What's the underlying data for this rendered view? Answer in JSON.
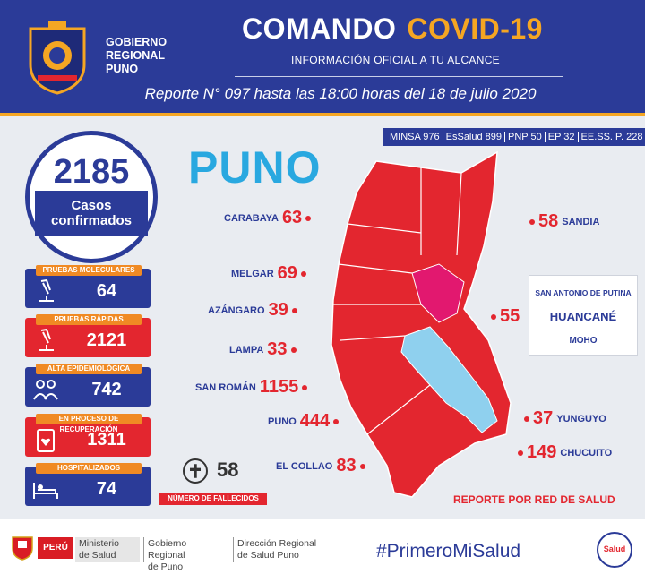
{
  "header": {
    "gov_line1": "GOBIERNO",
    "gov_line2": "REGIONAL",
    "gov_line3": "PUNO",
    "title_main": "COMANDO",
    "title_accent": "COVID-19",
    "subtitle": "INFORMACIÓN OFICIAL A TU ALCANCE",
    "report": "Reporte N° 097 hasta las 18:00 horas del 18 de julio 2020"
  },
  "sources": [
    "MINSA 976",
    "EsSalud 899",
    "PNP 50",
    "EP 32",
    "EE.SS. P. 228"
  ],
  "confirmed": {
    "value": "2185",
    "label_line1": "Casos",
    "label_line2": "confirmados"
  },
  "stats": [
    {
      "tag": "PRUEBAS MOLECULARES",
      "value": "64",
      "icon": "microscope-icon"
    },
    {
      "tag": "PRUEBAS RÁPIDAS",
      "value": "2121",
      "icon": "microscope-icon"
    },
    {
      "tag": "ALTA EPIDEMIOLÓGICA",
      "value": "742",
      "icon": "people-icon"
    },
    {
      "tag": "EN PROCESO DE RECUPERACIÓN",
      "value": "1311",
      "icon": "clipboard-heart-icon"
    },
    {
      "tag": "HOSPITALIZADOS",
      "value": "74",
      "icon": "hospital-bed-icon"
    }
  ],
  "deaths": {
    "value": "58",
    "label": "NÚMERO DE FALLECIDOS"
  },
  "region_title": "PUNO",
  "provinces_left": [
    {
      "name": "CARABAYA",
      "value": "63"
    },
    {
      "name": "MELGAR",
      "value": "69"
    },
    {
      "name": "AZÁNGARO",
      "value": "39"
    },
    {
      "name": "LAMPA",
      "value": "33"
    },
    {
      "name": "SAN ROMÁN",
      "value": "1155"
    },
    {
      "name": "PUNO",
      "value": "444"
    },
    {
      "name": "EL COLLAO",
      "value": "83"
    }
  ],
  "provinces_right": [
    {
      "name": "SANDIA",
      "value": "58"
    },
    {
      "name": "YUNGUYO",
      "value": "37"
    },
    {
      "name": "CHUCUITO",
      "value": "149"
    }
  ],
  "san_antonio": {
    "value": "55",
    "line1": "SAN ANTONIO DE PUTINA",
    "line2": "HUANCANÉ",
    "line3": "MOHO"
  },
  "report_note": "REPORTE POR RED DE SALUD",
  "footer": {
    "peru": "PERÚ",
    "minsa_1": "Ministerio",
    "minsa_2": "de Salud",
    "gob_1": "Gobierno Regional",
    "gob_2": "de Puno",
    "dir_1": "Dirección Regional",
    "dir_2": "de Salud Puno",
    "hashtag": "#PrimeroMiSalud",
    "seal": "Salud"
  },
  "colors": {
    "navy": "#2b3b98",
    "red": "#e3262f",
    "orange": "#f08a24",
    "cyan": "#29a8e0",
    "lake": "#8fd0ee",
    "magenta": "#e2186f"
  }
}
